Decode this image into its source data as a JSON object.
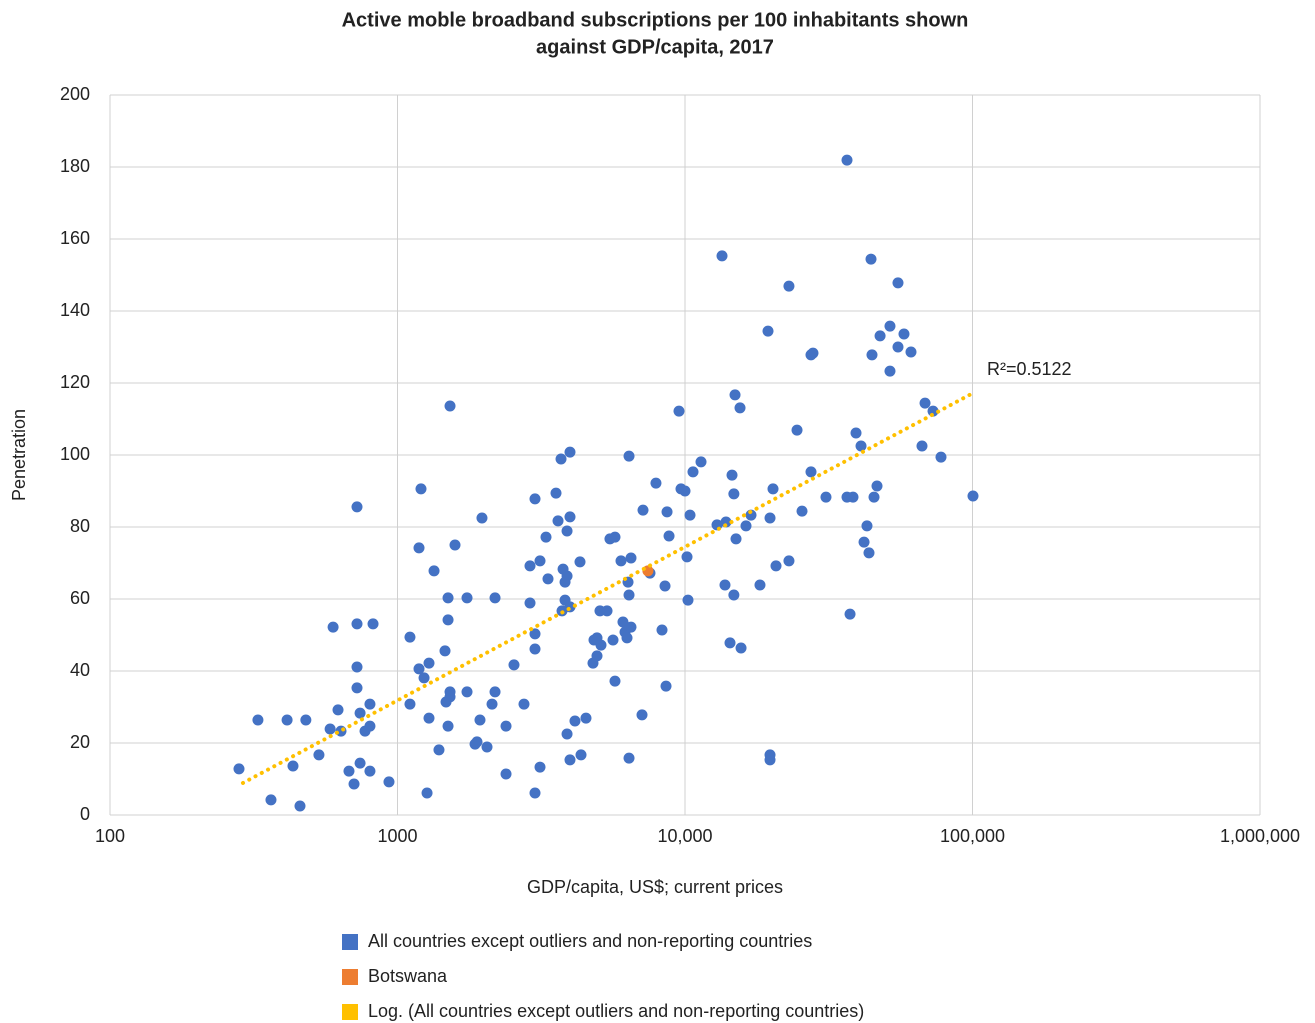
{
  "chart_data": {
    "type": "scatter",
    "title": [
      "Active moble broadband subscriptions per 100 inhabitants shown",
      "against GDP/capita, 2017"
    ],
    "x_label": "GDP/capita, US$; current prices",
    "y_label": "Penetration",
    "annotation": "R²=0.5122",
    "xlog": true,
    "grid": true,
    "legend": "bottom",
    "xlim": [
      100,
      1000000
    ],
    "xticks": [
      100,
      1000,
      {
        "value": 10000,
        "label": "10,000"
      },
      {
        "value": 100000,
        "label": "100,000"
      },
      {
        "value": 1000000,
        "label": "1,000,000"
      }
    ],
    "ylim": [
      0,
      200
    ],
    "yticks": [
      0,
      20,
      40,
      60,
      80,
      100,
      120,
      140,
      160,
      180,
      200
    ],
    "series": [
      {
        "name": "All countries except outliers and non-reporting countries",
        "color": "#4472c4",
        "x": [
          281,
          327,
          363,
          413,
          433,
          458,
          480,
          533,
          583,
          597,
          621,
          636,
          678,
          706,
          723,
          723,
          723,
          723,
          741,
          741,
          771,
          802,
          802,
          802,
          822,
          934,
          1105,
          1105,
          1188,
          1188,
          1207,
          1237,
          1267,
          1287,
          1287,
          1340,
          1394,
          1463,
          1475,
          1499,
          1499,
          1499,
          1523,
          1523,
          1523,
          1585,
          1745,
          1745,
          1861,
          1890,
          1936,
          1967,
          2048,
          2132,
          2184,
          2184,
          2385,
          2385,
          2542,
          2754,
          2890,
          2890,
          3008,
          3008,
          3008,
          3008,
          3131,
          3131,
          3285,
          3338,
          3559,
          3617,
          3705,
          3735,
          3766,
          3826,
          3826,
          3888,
          3888,
          3888,
          3981,
          3981,
          3981,
          3981,
          4143,
          4313,
          4348,
          4525,
          4786,
          4825,
          4942,
          4942,
          5062,
          5103,
          5355,
          5483,
          5618,
          5708,
          5708,
          5990,
          6085,
          6185,
          6285,
          6336,
          6387,
          6387,
          6387,
          6490,
          6490,
          7087,
          7144,
          7554,
          7925,
          8318,
          8521,
          8590,
          8660,
          8800,
          9530,
          9685,
          10000,
          10162,
          10243,
          10409,
          10662,
          11368,
          12924,
          13451,
          13775,
          13887,
          14340,
          14572,
          14791,
          14791,
          14928,
          15048,
          15537,
          15665,
          16301,
          16966,
          18231,
          19441,
          19757,
          19757,
          19757,
          20236,
          20728,
          22992,
          22992,
          24526,
          25527,
          27432,
          27432,
          27870,
          30930,
          36600,
          36600,
          37500,
          38400,
          39340,
          40950,
          41950,
          42950,
          43650,
          44360,
          44710,
          45440,
          46540,
          47700,
          51640,
          51640,
          55060,
          55060,
          57770,
          61100,
          66730,
          68380,
          72900,
          77700,
          100400
        ],
        "values": [
          12.8,
          26.4,
          4.2,
          26.4,
          13.6,
          2.5,
          26.4,
          16.7,
          23.9,
          52.2,
          29.2,
          23.3,
          12.2,
          8.6,
          85.6,
          53.1,
          41.1,
          35.3,
          28.3,
          14.4,
          23.3,
          24.7,
          30.8,
          12.2,
          53.1,
          9.2,
          49.4,
          30.8,
          74.2,
          40.6,
          90.6,
          38.1,
          6.1,
          42.2,
          26.9,
          67.8,
          18.1,
          45.6,
          31.4,
          60.3,
          54.2,
          24.7,
          113.6,
          34.2,
          32.8,
          75,
          60.3,
          34.2,
          19.7,
          20.3,
          26.4,
          82.5,
          18.9,
          30.8,
          60.3,
          34.2,
          11.4,
          24.7,
          41.7,
          30.8,
          58.9,
          69.2,
          87.8,
          50.3,
          46.1,
          6.1,
          70.6,
          13.3,
          77.2,
          65.6,
          89.4,
          81.7,
          98.9,
          56.7,
          68.3,
          64.7,
          59.7,
          66.4,
          78.9,
          22.5,
          82.8,
          100.8,
          57.8,
          15.3,
          26.1,
          70.3,
          16.7,
          26.9,
          42.2,
          48.6,
          49.2,
          44.2,
          56.7,
          47.2,
          56.7,
          76.7,
          48.6,
          77.2,
          37.2,
          70.6,
          53.6,
          50.8,
          49.2,
          64.7,
          99.7,
          61.1,
          15.8,
          71.4,
          52.2,
          27.8,
          84.7,
          67.2,
          92.2,
          51.4,
          63.6,
          35.8,
          84.2,
          77.5,
          112.2,
          90.6,
          90,
          71.7,
          59.7,
          83.3,
          95.3,
          98.1,
          80.6,
          155.3,
          63.9,
          81.4,
          47.8,
          94.4,
          89.2,
          61.1,
          116.7,
          76.7,
          113.1,
          46.4,
          80.3,
          83.3,
          63.9,
          134.4,
          16.7,
          15.3,
          82.5,
          90.6,
          69.2,
          70.6,
          146.9,
          106.9,
          84.4,
          95.3,
          127.8,
          128.3,
          88.3,
          181.9,
          88.3,
          55.8,
          88.3,
          106.1,
          102.5,
          75.8,
          80.3,
          72.8,
          154.4,
          127.8,
          88.3,
          91.4,
          133.1,
          135.8,
          123.3,
          147.8,
          130,
          133.6,
          128.6,
          102.5,
          114.4,
          112.2,
          99.4,
          88.6
        ]
      },
      {
        "name": "Botswana",
        "color": "#ed7d31",
        "x": [
          7430
        ],
        "values": [
          67.8
        ]
      },
      {
        "name": "Log. (All countries except outliers and non-reporting countries)",
        "color": "#ffc000",
        "line_style": "dotted",
        "x": [
          290,
          102000
        ],
        "values": [
          8.9,
          117.5
        ]
      }
    ]
  }
}
